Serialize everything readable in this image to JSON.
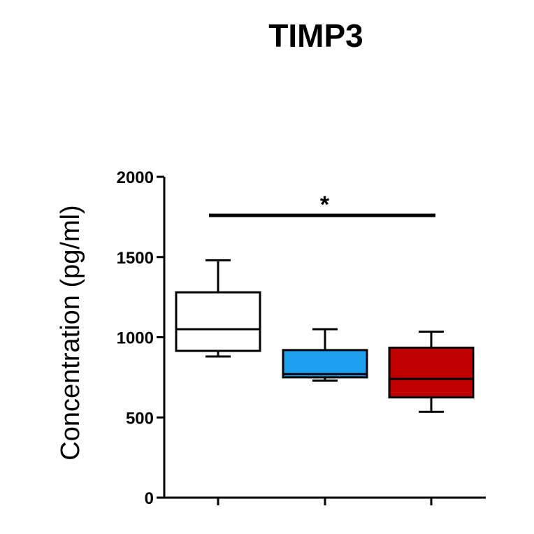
{
  "chart_data": {
    "type": "box",
    "title": "TIMP3",
    "xlabel": "",
    "ylabel": "Concentration (pg/ml)",
    "ylim": [
      0,
      2000
    ],
    "yticks": [
      0,
      500,
      1000,
      1500,
      2000
    ],
    "grid": false,
    "series": [
      {
        "min": 880,
        "q1": 915,
        "median": 1050,
        "q3": 1280,
        "max": 1480,
        "color": "#ffffff"
      },
      {
        "min": 730,
        "q1": 750,
        "median": 770,
        "q3": 920,
        "max": 1050,
        "color": "#1ea0f0"
      },
      {
        "min": 535,
        "q1": 625,
        "median": 740,
        "q3": 935,
        "max": 1035,
        "color": "#c00000"
      }
    ],
    "significance": {
      "from": 0,
      "to": 2,
      "y": 1760,
      "label": "*"
    }
  }
}
